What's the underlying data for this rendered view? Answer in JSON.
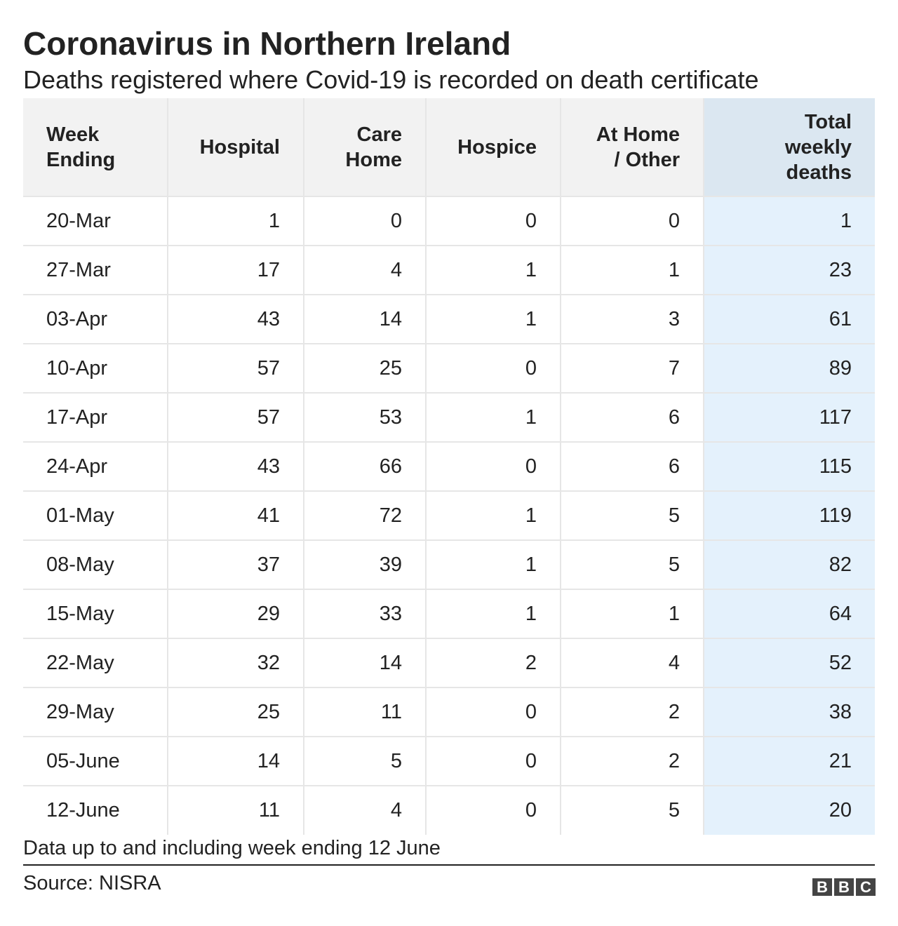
{
  "chart_data": {
    "type": "table",
    "title": "Coronavirus in Northern Ireland",
    "subtitle": "Deaths registered where Covid-19 is recorded on death certificate",
    "columns": [
      {
        "key": "week",
        "label": [
          "Week",
          "Ending"
        ]
      },
      {
        "key": "hospital",
        "label": [
          "Hospital"
        ]
      },
      {
        "key": "care_home",
        "label": [
          "Care",
          "Home"
        ]
      },
      {
        "key": "hospice",
        "label": [
          "Hospice"
        ]
      },
      {
        "key": "at_home",
        "label": [
          "At Home",
          "/ Other"
        ]
      },
      {
        "key": "total",
        "label": [
          "Total",
          "weekly",
          "deaths"
        ]
      }
    ],
    "rows": [
      [
        "20-Mar",
        1,
        0,
        0,
        0,
        1
      ],
      [
        "27-Mar",
        17,
        4,
        1,
        1,
        23
      ],
      [
        "03-Apr",
        43,
        14,
        1,
        3,
        61
      ],
      [
        "10-Apr",
        57,
        25,
        0,
        7,
        89
      ],
      [
        "17-Apr",
        57,
        53,
        1,
        6,
        117
      ],
      [
        "24-Apr",
        43,
        66,
        0,
        6,
        115
      ],
      [
        "01-May",
        41,
        72,
        1,
        5,
        119
      ],
      [
        "08-May",
        37,
        39,
        1,
        5,
        82
      ],
      [
        "15-May",
        29,
        33,
        1,
        1,
        64
      ],
      [
        "22-May",
        32,
        14,
        2,
        4,
        52
      ],
      [
        "29-May",
        25,
        11,
        0,
        2,
        38
      ],
      [
        "05-June",
        14,
        5,
        0,
        2,
        21
      ],
      [
        "12-June",
        11,
        4,
        0,
        5,
        20
      ]
    ],
    "highlight_column": "total",
    "colors": {
      "header_bg": "#f2f2f2",
      "highlight_header_bg": "#dbe7f1",
      "highlight_cell_bg": "#e4f1fc",
      "grid": "#e6e6e6",
      "text": "#222222"
    }
  },
  "footnote": "Data up to and including week ending 12 June",
  "source": "Source: NISRA",
  "logo": [
    "B",
    "B",
    "C"
  ]
}
